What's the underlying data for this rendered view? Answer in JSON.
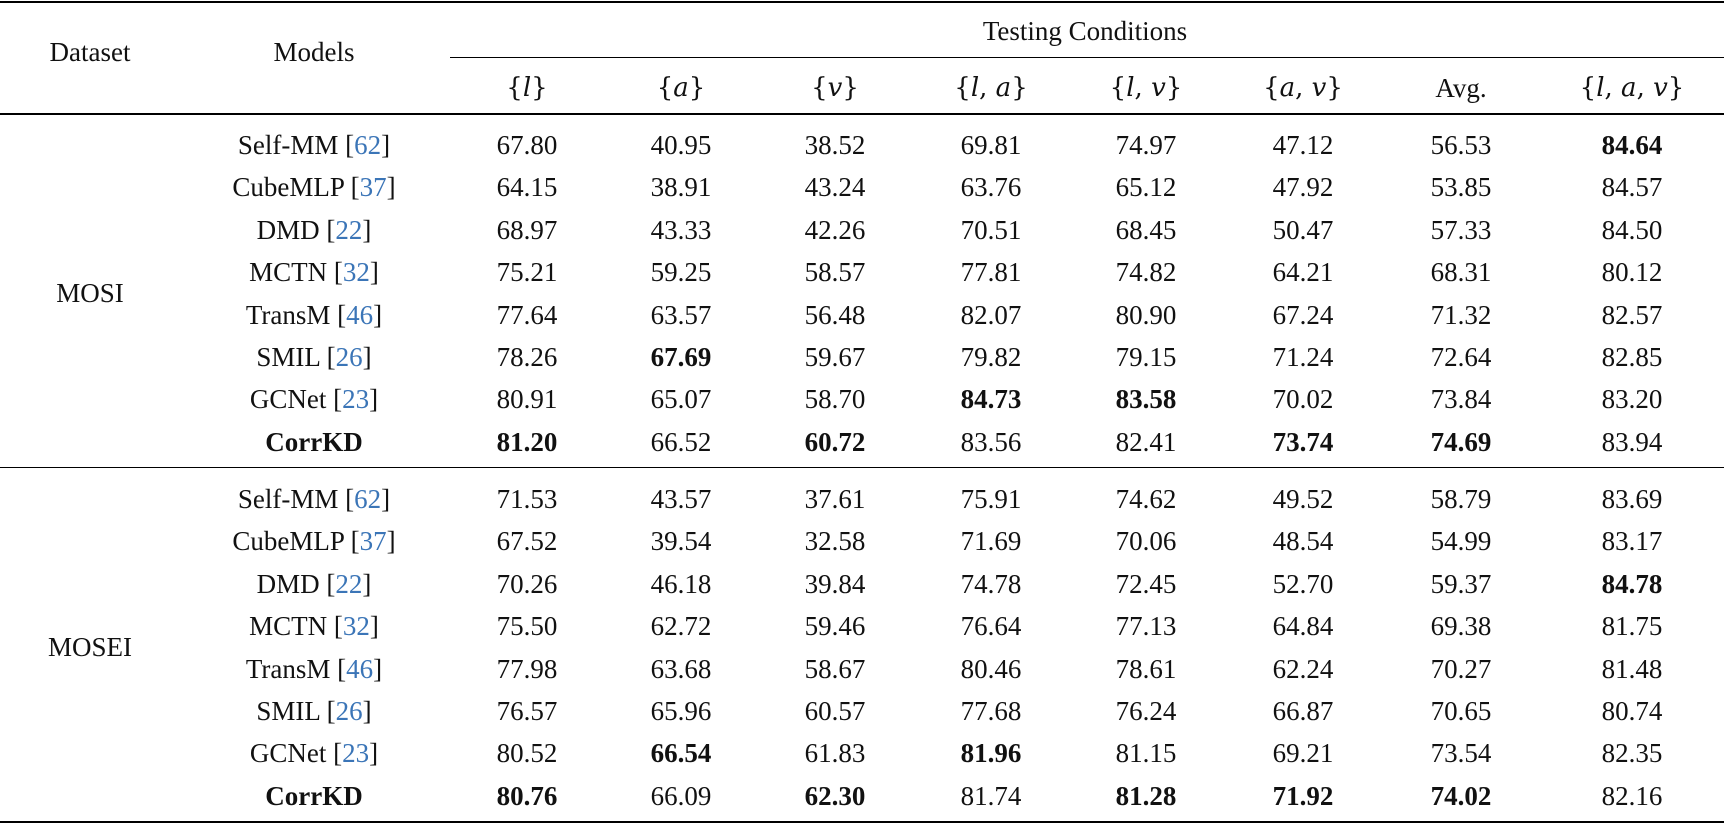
{
  "header": {
    "dataset": "Dataset",
    "models": "Models",
    "testing_conditions": "Testing Conditions",
    "columns": [
      "{l}",
      "{a}",
      "{v}",
      "{l, a}",
      "{l, v}",
      "{a, v}",
      "Avg.",
      "{l, a, v}"
    ]
  },
  "groups": [
    {
      "dataset": "MOSI",
      "rows": [
        {
          "model": "Self-MM",
          "cite": "62",
          "values": [
            "67.80",
            "40.95",
            "38.52",
            "69.81",
            "74.97",
            "47.12",
            "56.53",
            "84.64"
          ],
          "bold": [
            7
          ]
        },
        {
          "model": "CubeMLP",
          "cite": "37",
          "values": [
            "64.15",
            "38.91",
            "43.24",
            "63.76",
            "65.12",
            "47.92",
            "53.85",
            "84.57"
          ],
          "bold": []
        },
        {
          "model": "DMD",
          "cite": "22",
          "values": [
            "68.97",
            "43.33",
            "42.26",
            "70.51",
            "68.45",
            "50.47",
            "57.33",
            "84.50"
          ],
          "bold": []
        },
        {
          "model": "MCTN",
          "cite": "32",
          "values": [
            "75.21",
            "59.25",
            "58.57",
            "77.81",
            "74.82",
            "64.21",
            "68.31",
            "80.12"
          ],
          "bold": []
        },
        {
          "model": "TransM",
          "cite": "46",
          "values": [
            "77.64",
            "63.57",
            "56.48",
            "82.07",
            "80.90",
            "67.24",
            "71.32",
            "82.57"
          ],
          "bold": []
        },
        {
          "model": "SMIL",
          "cite": "26",
          "values": [
            "78.26",
            "67.69",
            "59.67",
            "79.82",
            "79.15",
            "71.24",
            "72.64",
            "82.85"
          ],
          "bold": [
            1
          ]
        },
        {
          "model": "GCNet",
          "cite": "23",
          "values": [
            "80.91",
            "65.07",
            "58.70",
            "84.73",
            "83.58",
            "70.02",
            "73.84",
            "83.20"
          ],
          "bold": [
            3,
            4
          ]
        },
        {
          "model": "CorrKD",
          "cite": "",
          "values": [
            "81.20",
            "66.52",
            "60.72",
            "83.56",
            "82.41",
            "73.74",
            "74.69",
            "83.94"
          ],
          "bold": [
            0,
            2,
            5,
            6
          ],
          "model_bold": true
        }
      ]
    },
    {
      "dataset": "MOSEI",
      "rows": [
        {
          "model": "Self-MM",
          "cite": "62",
          "values": [
            "71.53",
            "43.57",
            "37.61",
            "75.91",
            "74.62",
            "49.52",
            "58.79",
            "83.69"
          ],
          "bold": []
        },
        {
          "model": "CubeMLP",
          "cite": "37",
          "values": [
            "67.52",
            "39.54",
            "32.58",
            "71.69",
            "70.06",
            "48.54",
            "54.99",
            "83.17"
          ],
          "bold": []
        },
        {
          "model": "DMD",
          "cite": "22",
          "values": [
            "70.26",
            "46.18",
            "39.84",
            "74.78",
            "72.45",
            "52.70",
            "59.37",
            "84.78"
          ],
          "bold": [
            7
          ]
        },
        {
          "model": "MCTN",
          "cite": "32",
          "values": [
            "75.50",
            "62.72",
            "59.46",
            "76.64",
            "77.13",
            "64.84",
            "69.38",
            "81.75"
          ],
          "bold": []
        },
        {
          "model": "TransM",
          "cite": "46",
          "values": [
            "77.98",
            "63.68",
            "58.67",
            "80.46",
            "78.61",
            "62.24",
            "70.27",
            "81.48"
          ],
          "bold": []
        },
        {
          "model": "SMIL",
          "cite": "26",
          "values": [
            "76.57",
            "65.96",
            "60.57",
            "77.68",
            "76.24",
            "66.87",
            "70.65",
            "80.74"
          ],
          "bold": []
        },
        {
          "model": "GCNet",
          "cite": "23",
          "values": [
            "80.52",
            "66.54",
            "61.83",
            "81.96",
            "81.15",
            "69.21",
            "73.54",
            "82.35"
          ],
          "bold": [
            1,
            3
          ]
        },
        {
          "model": "CorrKD",
          "cite": "",
          "values": [
            "80.76",
            "66.09",
            "62.30",
            "81.74",
            "81.28",
            "71.92",
            "74.02",
            "82.16"
          ],
          "bold": [
            0,
            2,
            4,
            5,
            6
          ],
          "model_bold": true
        }
      ]
    }
  ],
  "colors": {
    "citation": "#3b75b7",
    "text": "#111111",
    "rule": "#000000"
  }
}
